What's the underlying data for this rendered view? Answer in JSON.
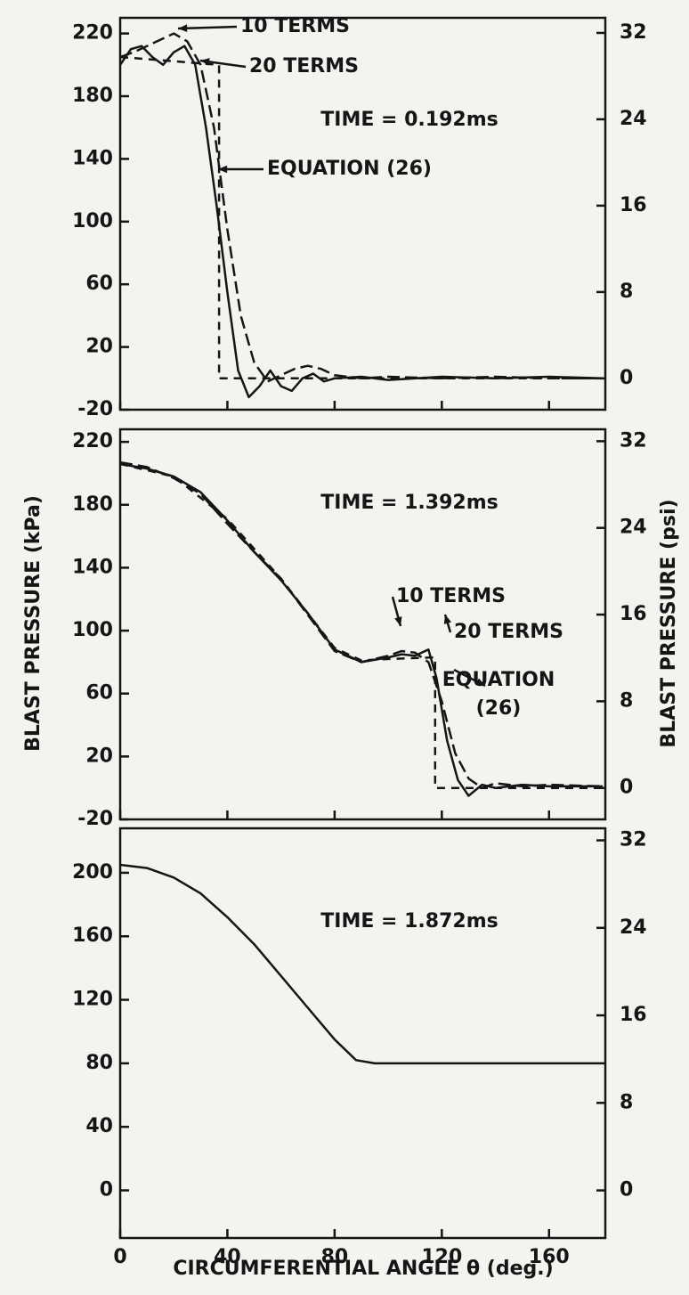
{
  "chart_data": [
    {
      "type": "line",
      "annotation": "TIME = 0.192ms",
      "xlim": [
        0,
        181
      ],
      "ylim": [
        -20,
        230
      ],
      "yticks": [
        -20,
        20,
        60,
        100,
        140,
        180,
        220
      ],
      "y2lim": [
        -2.9,
        33.4
      ],
      "y2ticks": [
        0,
        8,
        16,
        24,
        32
      ],
      "color": "#151515",
      "series": [
        {
          "name": "10 TERMS",
          "style": "dashed",
          "x": [
            0,
            5,
            10,
            15,
            20,
            25,
            30,
            35,
            40,
            45,
            50,
            55,
            60,
            65,
            70,
            75,
            80,
            90,
            100,
            120,
            140,
            160,
            180
          ],
          "values": [
            205,
            208,
            212,
            216,
            220,
            215,
            200,
            160,
            95,
            40,
            10,
            -2,
            2,
            6,
            8,
            6,
            2,
            0,
            1,
            0,
            1,
            0,
            0
          ]
        },
        {
          "name": "20 TERMS",
          "style": "solid",
          "x": [
            0,
            4,
            8,
            12,
            16,
            20,
            24,
            28,
            32,
            36,
            40,
            44,
            48,
            52,
            56,
            60,
            64,
            68,
            72,
            76,
            80,
            90,
            100,
            120,
            140,
            160,
            180
          ],
          "values": [
            200,
            210,
            212,
            205,
            200,
            208,
            212,
            200,
            160,
            110,
            55,
            5,
            -12,
            -5,
            5,
            -5,
            -8,
            0,
            3,
            -2,
            0,
            1,
            -1,
            1,
            0,
            1,
            0
          ]
        },
        {
          "name": "EQUATION (26)",
          "style": "dotted",
          "x": [
            0,
            36.9,
            36.9,
            181
          ],
          "values": [
            205,
            200,
            0,
            0
          ]
        }
      ]
    },
    {
      "type": "line",
      "annotation": "TIME = 1.392ms",
      "ylabel": "BLAST PRESSURE (kPa)",
      "y2label": "BLAST PRESSURE (psi)",
      "xlim": [
        0,
        181
      ],
      "ylim": [
        -20,
        228
      ],
      "yticks": [
        -20,
        20,
        60,
        100,
        140,
        180,
        220
      ],
      "y2lim": [
        -2.9,
        33.1
      ],
      "y2ticks": [
        0,
        8,
        16,
        24,
        32
      ],
      "color": "#151515",
      "series": [
        {
          "name": "10 TERMS",
          "style": "dashed",
          "x": [
            0,
            10,
            20,
            30,
            40,
            50,
            60,
            70,
            80,
            90,
            100,
            105,
            110,
            115,
            120,
            125,
            130,
            135,
            140,
            150,
            160,
            180
          ],
          "values": [
            207,
            204,
            197,
            187,
            168,
            150,
            133,
            110,
            87,
            80,
            84,
            87,
            86,
            80,
            55,
            22,
            6,
            0,
            3,
            1,
            2,
            1
          ]
        },
        {
          "name": "20 TERMS",
          "style": "solid",
          "x": [
            0,
            10,
            20,
            30,
            40,
            50,
            60,
            70,
            80,
            90,
            100,
            105,
            110,
            115,
            118,
            122,
            126,
            130,
            135,
            140,
            150,
            160,
            180
          ],
          "values": [
            206,
            203,
            198,
            188,
            170,
            150,
            132,
            111,
            88,
            80,
            83,
            85,
            84,
            88,
            70,
            30,
            5,
            -5,
            2,
            0,
            2,
            1,
            1
          ]
        },
        {
          "name": "EQUATION (26)",
          "style": "dotted",
          "x": [
            0,
            20,
            40,
            60,
            80,
            90,
            100,
            117.5,
            117.5,
            181
          ],
          "values": [
            206,
            198,
            171,
            133,
            89,
            81,
            82,
            83,
            0,
            0
          ]
        }
      ]
    },
    {
      "type": "line",
      "annotation": "TIME = 1.872ms",
      "xlabel": "CIRCUMFERENTIAL ANGLE θ (deg.)",
      "xlim": [
        0,
        181
      ],
      "xticks": [
        0,
        40,
        80,
        120,
        160
      ],
      "ylim": [
        -30,
        228
      ],
      "yticks": [
        0,
        40,
        80,
        120,
        160,
        200
      ],
      "y2lim": [
        -4.35,
        33.1
      ],
      "y2ticks": [
        0,
        8,
        16,
        24,
        32
      ],
      "color": "#151515",
      "x": [
        0,
        10,
        20,
        30,
        40,
        50,
        60,
        70,
        80,
        88,
        95,
        181
      ],
      "values": [
        205,
        203,
        197,
        187,
        172,
        155,
        135,
        115,
        95,
        82,
        80,
        80
      ]
    }
  ]
}
